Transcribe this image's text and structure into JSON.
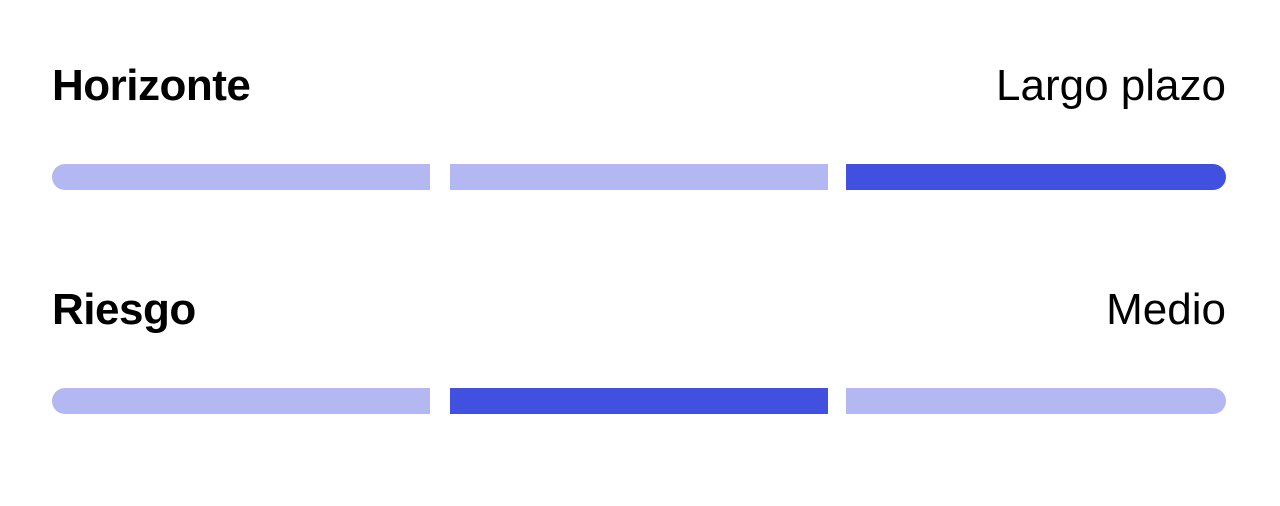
{
  "colors": {
    "inactive": "#b3b8f2",
    "active": "#4150de"
  },
  "metrics": [
    {
      "label": "Horizonte",
      "value": "Largo plazo",
      "active_segment": 3,
      "segments": 3
    },
    {
      "label": "Riesgo",
      "value": "Medio",
      "active_segment": 2,
      "segments": 3
    }
  ]
}
